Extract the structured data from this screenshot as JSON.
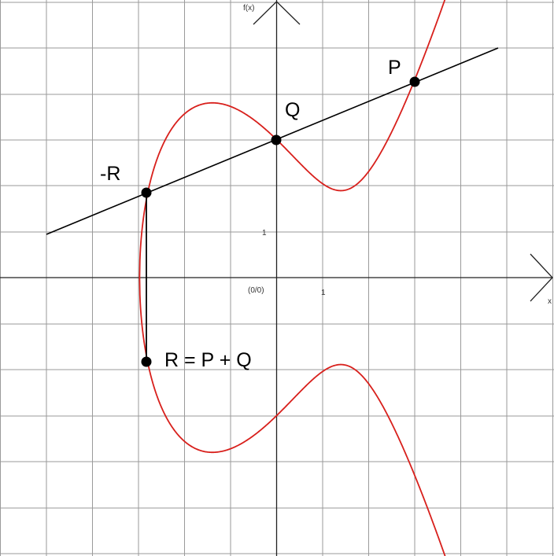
{
  "labels": {
    "y_axis": "f(x)",
    "x_axis": "x",
    "origin": "(0/0)",
    "tick_x": "1",
    "tick_y": "1"
  },
  "points": [
    {
      "key": "P",
      "label": "P",
      "x": 3,
      "y": 4.3
    },
    {
      "key": "Q",
      "label": "Q",
      "x": 0,
      "y": 3
    },
    {
      "key": "neg-R",
      "label": "-R",
      "x": -2.85,
      "y": 1.85
    },
    {
      "key": "R",
      "label": "R = P + Q",
      "x": -2.85,
      "y": -1.85
    }
  ],
  "colors": {
    "curve": "#d8201c",
    "line": "#000000",
    "grid": "#9a9a9a",
    "axis": "#222222",
    "point": "#000000"
  }
}
